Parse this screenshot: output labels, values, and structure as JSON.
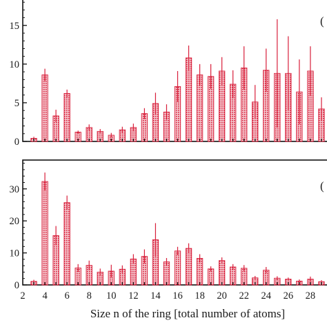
{
  "chart_data": [
    {
      "type": "bar",
      "panel_tag": "(",
      "xlim": [
        2,
        30
      ],
      "ylim": [
        0,
        19
      ],
      "yticks": [
        0,
        5,
        10,
        15
      ],
      "bar_color": "#d81e3a",
      "x": [
        3,
        4,
        5,
        6,
        7,
        8,
        9,
        10,
        11,
        12,
        13,
        14,
        15,
        16,
        17,
        18,
        19,
        20,
        21,
        22,
        23,
        24,
        25,
        26,
        27,
        28,
        29
      ],
      "values": [
        0.4,
        8.6,
        3.3,
        6.2,
        1.2,
        1.8,
        1.3,
        0.8,
        1.5,
        1.8,
        3.6,
        4.9,
        3.8,
        7.1,
        10.8,
        8.6,
        8.4,
        9.1,
        7.4,
        9.5,
        5.1,
        9.2,
        8.8,
        8.8,
        6.4,
        9.1,
        4.2
      ],
      "errors": [
        0.2,
        0.8,
        0.8,
        0.5,
        0.2,
        0.4,
        0.3,
        0.3,
        0.4,
        0.5,
        0.7,
        1.4,
        1.0,
        2.0,
        1.6,
        1.4,
        1.6,
        1.8,
        1.8,
        2.8,
        2.2,
        2.8,
        7.0,
        4.8,
        4.2,
        3.2,
        1.5
      ]
    },
    {
      "type": "bar",
      "panel_tag": "(",
      "xlim": [
        2,
        30
      ],
      "ylim": [
        0,
        39
      ],
      "yticks": [
        0,
        10,
        20,
        30
      ],
      "xticks": [
        2,
        4,
        6,
        8,
        10,
        12,
        14,
        16,
        18,
        20,
        22,
        24,
        26,
        28
      ],
      "xlabel": "Size n of the ring [total number of atoms]",
      "bar_color": "#d81e3a",
      "x": [
        3,
        4,
        5,
        6,
        7,
        8,
        9,
        10,
        11,
        12,
        13,
        14,
        15,
        16,
        17,
        18,
        19,
        20,
        21,
        22,
        23,
        24,
        25,
        26,
        27,
        28,
        29
      ],
      "values": [
        1.1,
        32.3,
        15.4,
        25.7,
        5.3,
        6.1,
        4.0,
        4.3,
        4.9,
        8.1,
        8.9,
        14.1,
        7.2,
        10.6,
        11.4,
        8.3,
        5.0,
        7.6,
        5.6,
        5.2,
        2.2,
        4.6,
        2.1,
        1.8,
        1.2,
        1.8,
        1.0
      ],
      "errors": [
        0.5,
        2.8,
        3.0,
        2.2,
        1.2,
        1.5,
        1.1,
        2.0,
        1.2,
        1.5,
        2.2,
        5.2,
        1.2,
        1.3,
        1.6,
        1.3,
        0.8,
        1.0,
        0.9,
        1.0,
        0.6,
        1.0,
        0.6,
        0.5,
        0.5,
        0.8,
        0.5
      ]
    }
  ]
}
